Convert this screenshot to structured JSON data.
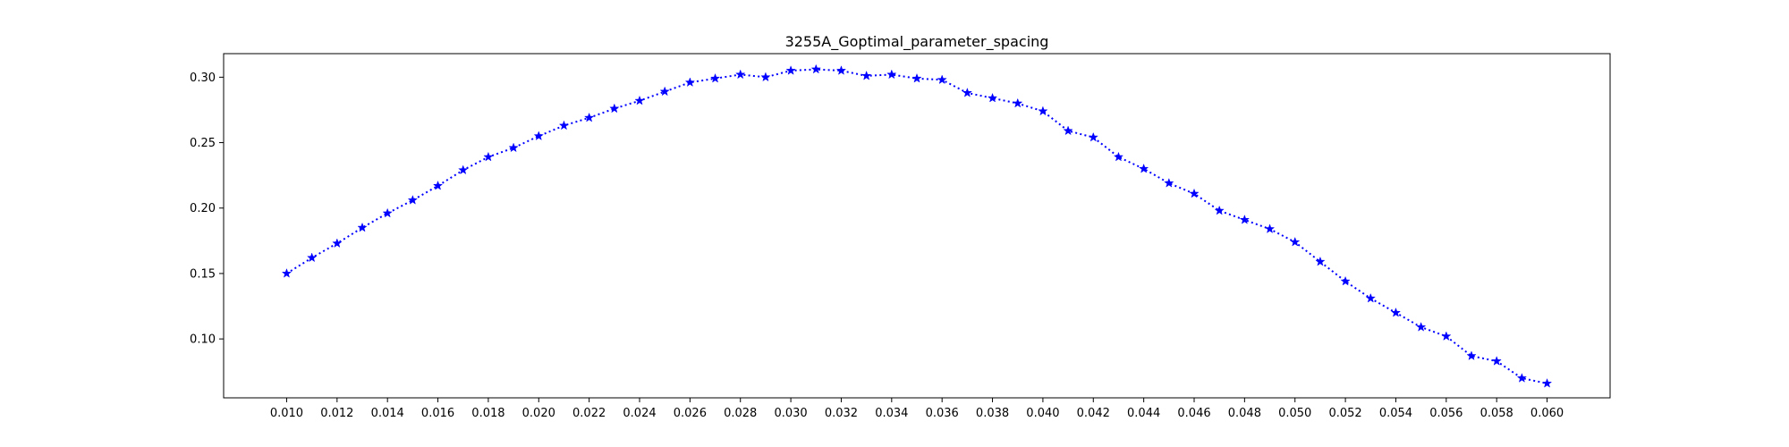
{
  "chart_data": {
    "type": "line",
    "title": "3255A_Goptimal_parameter_spacing",
    "xlabel": "",
    "ylabel": "",
    "grid": false,
    "xlim": [
      0.0075,
      0.0625
    ],
    "ylim": [
      0.055,
      0.318
    ],
    "x_ticks": [
      "0.010",
      "0.012",
      "0.014",
      "0.016",
      "0.018",
      "0.020",
      "0.022",
      "0.024",
      "0.026",
      "0.028",
      "0.030",
      "0.032",
      "0.034",
      "0.036",
      "0.038",
      "0.040",
      "0.042",
      "0.044",
      "0.046",
      "0.048",
      "0.050",
      "0.052",
      "0.054",
      "0.056",
      "0.058",
      "0.060"
    ],
    "x_tick_values": [
      0.01,
      0.012,
      0.014,
      0.016,
      0.018,
      0.02,
      0.022,
      0.024,
      0.026,
      0.028,
      0.03,
      0.032,
      0.034,
      0.036,
      0.038,
      0.04,
      0.042,
      0.044,
      0.046,
      0.048,
      0.05,
      0.052,
      0.054,
      0.056,
      0.058,
      0.06
    ],
    "y_ticks": [
      "0.10",
      "0.15",
      "0.20",
      "0.25",
      "0.30"
    ],
    "y_tick_values": [
      0.1,
      0.15,
      0.2,
      0.25,
      0.3
    ],
    "series": [
      {
        "color": "#0000ff",
        "line_style": "dotted",
        "marker": "star",
        "x": [
          0.01,
          0.011,
          0.012,
          0.013,
          0.014,
          0.015,
          0.016,
          0.017,
          0.018,
          0.019,
          0.02,
          0.021,
          0.022,
          0.023,
          0.024,
          0.025,
          0.026,
          0.027,
          0.028,
          0.029,
          0.03,
          0.031,
          0.032,
          0.033,
          0.034,
          0.035,
          0.036,
          0.037,
          0.038,
          0.039,
          0.04,
          0.041,
          0.042,
          0.043,
          0.044,
          0.045,
          0.046,
          0.047,
          0.048,
          0.049,
          0.05,
          0.051,
          0.052,
          0.053,
          0.054,
          0.055,
          0.056,
          0.057,
          0.058,
          0.059,
          0.06
        ],
        "y": [
          0.15,
          0.162,
          0.173,
          0.185,
          0.196,
          0.206,
          0.217,
          0.229,
          0.239,
          0.246,
          0.255,
          0.263,
          0.269,
          0.276,
          0.282,
          0.289,
          0.296,
          0.299,
          0.302,
          0.3,
          0.305,
          0.306,
          0.305,
          0.301,
          0.302,
          0.299,
          0.298,
          0.288,
          0.284,
          0.28,
          0.274,
          0.259,
          0.254,
          0.239,
          0.23,
          0.219,
          0.211,
          0.198,
          0.191,
          0.184,
          0.174,
          0.159,
          0.144,
          0.131,
          0.12,
          0.109,
          0.102,
          0.087,
          0.083,
          0.07,
          0.066
        ]
      }
    ]
  }
}
